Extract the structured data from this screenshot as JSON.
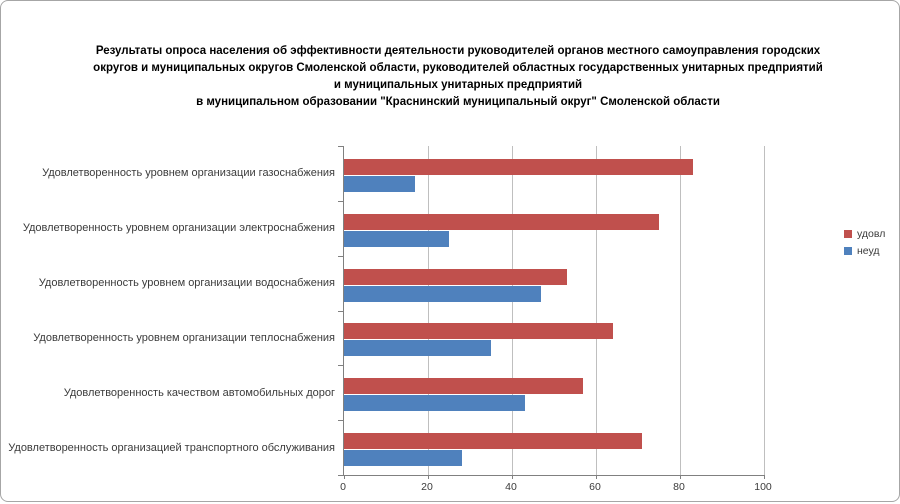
{
  "title": {
    "lines": [
      "Результаты опроса населения об эффективности деятельности руководителей органов местного самоуправления городских",
      "округов и муниципальных округов Смоленской области, руководителей областных государственных унитарных предприятий",
      "и муниципальных унитарных предприятий",
      "в муниципальном образовании \"Краснинский муниципальный округ\" Смоленской области"
    ]
  },
  "legend": {
    "items": [
      {
        "label": "удовл",
        "color": "#C0504D"
      },
      {
        "label": "неуд",
        "color": "#4F81BD"
      }
    ]
  },
  "chart_data": {
    "type": "bar",
    "orientation": "horizontal",
    "title": "Результаты опроса населения об эффективности деятельности руководителей органов местного самоуправления городских округов и муниципальных округов Смоленской области, руководителей областных государственных унитарных предприятий и муниципальных унитарных предприятий в муниципальном образовании \"Краснинский муниципальный округ\" Смоленской области",
    "categories": [
      "Удовлетворенность уровнем организации газоснабжения",
      "Удовлетворенность уровнем организации электроснабжения",
      "Удовлетворенность уровнем организации водоснабжения",
      "Удовлетворенность уровнем организации теплоснабжения",
      "Удовлетворенность качеством автомобильных дорог",
      "Удовлетворенность организацией транспортного обслуживания"
    ],
    "series": [
      {
        "name": "удовл",
        "color": "#C0504D",
        "values": [
          83,
          75,
          53,
          64,
          57,
          71
        ]
      },
      {
        "name": "неуд",
        "color": "#4F81BD",
        "values": [
          17,
          25,
          47,
          35,
          43,
          28
        ]
      }
    ],
    "xlabel": "",
    "ylabel": "",
    "xlim": [
      0,
      100
    ],
    "xticks": [
      0,
      20,
      40,
      60,
      80,
      100
    ],
    "grid": true,
    "legend_position": "right",
    "axis_color": "#808080",
    "gridline_color": "#BFBFBF"
  }
}
